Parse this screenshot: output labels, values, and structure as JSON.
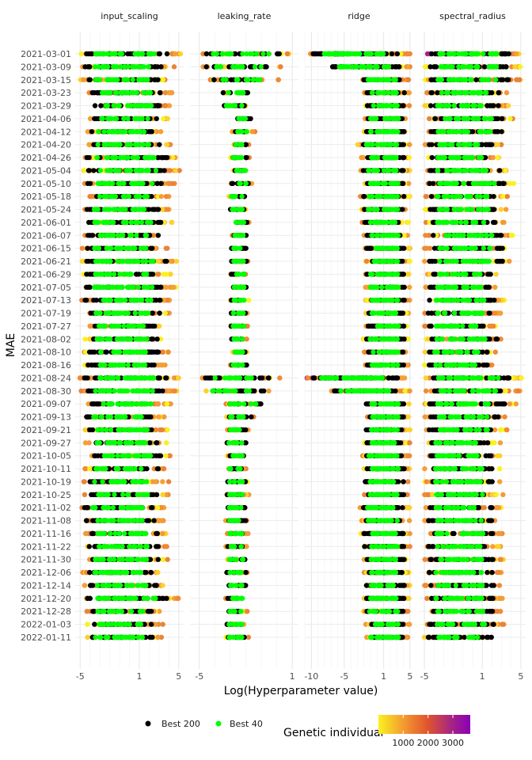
{
  "chart_data": {
    "type": "scatter",
    "ylabel": "MAE",
    "xlabel": "Log(Hyperparameter value)",
    "facets": [
      {
        "name": "input_scaling",
        "xlim": [
          -5.5,
          5.5
        ],
        "ticks": [
          {
            "v": -5,
            "label": "-5"
          },
          {
            "v": 1,
            "label": "1"
          },
          {
            "v": 5,
            "label": "5"
          }
        ]
      },
      {
        "name": "leaking_rate",
        "xlim": [
          -5.6,
          1.4
        ],
        "ticks": [
          {
            "v": -5,
            "label": "-5"
          },
          {
            "v": 1,
            "label": "1"
          }
        ]
      },
      {
        "name": "ridge",
        "xlim": [
          -11,
          5.5
        ],
        "ticks": [
          {
            "v": -10,
            "label": "-10"
          },
          {
            "v": -5,
            "label": "-5"
          },
          {
            "v": 1,
            "label": "1"
          },
          {
            "v": 5,
            "label": "5"
          }
        ]
      },
      {
        "name": "spectral_radius",
        "xlim": [
          -5.5,
          5.5
        ],
        "ticks": [
          {
            "v": -5,
            "label": "-5"
          },
          {
            "v": 1,
            "label": "1"
          },
          {
            "v": 5,
            "label": "5"
          }
        ]
      }
    ],
    "dates": [
      "2021-03-01",
      "2021-03-09",
      "2021-03-15",
      "2021-03-23",
      "2021-03-29",
      "2021-04-06",
      "2021-04-12",
      "2021-04-20",
      "2021-04-26",
      "2021-05-04",
      "2021-05-10",
      "2021-05-18",
      "2021-05-24",
      "2021-06-01",
      "2021-06-07",
      "2021-06-15",
      "2021-06-21",
      "2021-06-29",
      "2021-07-05",
      "2021-07-13",
      "2021-07-19",
      "2021-07-27",
      "2021-08-02",
      "2021-08-10",
      "2021-08-16",
      "2021-08-24",
      "2021-08-30",
      "2021-09-07",
      "2021-09-13",
      "2021-09-21",
      "2021-09-27",
      "2021-10-05",
      "2021-10-11",
      "2021-10-19",
      "2021-10-25",
      "2021-11-02",
      "2021-11-08",
      "2021-11-16",
      "2021-11-22",
      "2021-11-30",
      "2021-12-06",
      "2021-12-14",
      "2021-12-20",
      "2021-12-28",
      "2022-01-03",
      "2022-01-11"
    ],
    "ranges": {
      "input_scaling": [
        [
          -5.0,
          5.2
        ],
        [
          -5.0,
          4.6
        ],
        [
          -5.0,
          4.2
        ],
        [
          -4.2,
          4.4
        ],
        [
          -4.0,
          4.4
        ],
        [
          -4.0,
          4.0
        ],
        [
          -4.3,
          3.6
        ],
        [
          -4.5,
          4.2
        ],
        [
          -4.8,
          5.0
        ],
        [
          -4.8,
          5.2
        ],
        [
          -4.8,
          4.8
        ],
        [
          -4.2,
          4.0
        ],
        [
          -4.8,
          4.0
        ],
        [
          -5.0,
          4.6
        ],
        [
          -4.8,
          4.0
        ],
        [
          -4.8,
          4.0
        ],
        [
          -5.0,
          5.0
        ],
        [
          -5.0,
          4.2
        ],
        [
          -5.0,
          4.8
        ],
        [
          -5.0,
          4.6
        ],
        [
          -4.8,
          4.2
        ],
        [
          -4.4,
          3.5
        ],
        [
          -4.6,
          4.0
        ],
        [
          -4.6,
          4.0
        ],
        [
          -4.6,
          3.8
        ],
        [
          -5.2,
          5.2
        ],
        [
          -5.0,
          5.0
        ],
        [
          -4.4,
          4.4
        ],
        [
          -4.8,
          3.6
        ],
        [
          -4.6,
          4.0
        ],
        [
          -4.6,
          3.8
        ],
        [
          -4.0,
          4.2
        ],
        [
          -4.6,
          4.0
        ],
        [
          -4.8,
          4.0
        ],
        [
          -4.6,
          4.0
        ],
        [
          -5.0,
          3.8
        ],
        [
          -4.8,
          3.8
        ],
        [
          -4.6,
          4.0
        ],
        [
          -4.6,
          4.0
        ],
        [
          -4.8,
          4.0
        ],
        [
          -4.8,
          3.4
        ],
        [
          -4.6,
          3.8
        ],
        [
          -4.8,
          5.2
        ],
        [
          -4.4,
          3.4
        ],
        [
          -4.4,
          3.4
        ],
        [
          -4.6,
          3.4
        ]
      ],
      "leaking_rate": [
        [
          -5.0,
          1.0
        ],
        [
          -5.0,
          0.4
        ],
        [
          -4.3,
          0.2
        ],
        [
          -3.7,
          -1.6
        ],
        [
          -3.5,
          -1.8
        ],
        [
          -2.7,
          -1.5
        ],
        [
          -3.0,
          -1.4
        ],
        [
          -2.8,
          -1.8
        ],
        [
          -3.0,
          -1.7
        ],
        [
          -2.8,
          -1.7
        ],
        [
          -3.0,
          -1.6
        ],
        [
          -3.1,
          -1.9
        ],
        [
          -3.1,
          -1.9
        ],
        [
          -2.8,
          -1.7
        ],
        [
          -2.9,
          -1.8
        ],
        [
          -3.0,
          -1.8
        ],
        [
          -3.0,
          -1.8
        ],
        [
          -3.0,
          -1.8
        ],
        [
          -3.0,
          -1.8
        ],
        [
          -3.0,
          -1.8
        ],
        [
          -3.0,
          -1.8
        ],
        [
          -3.0,
          -1.8
        ],
        [
          -3.0,
          -1.8
        ],
        [
          -3.0,
          -1.8
        ],
        [
          -3.0,
          -1.8
        ],
        [
          -5.0,
          0.2
        ],
        [
          -5.0,
          -0.2
        ],
        [
          -3.5,
          -0.6
        ],
        [
          -3.3,
          -1.4
        ],
        [
          -3.3,
          -1.8
        ],
        [
          -3.3,
          -1.8
        ],
        [
          -3.3,
          -1.8
        ],
        [
          -3.3,
          -1.8
        ],
        [
          -3.3,
          -1.8
        ],
        [
          -3.3,
          -1.8
        ],
        [
          -3.3,
          -1.8
        ],
        [
          -3.3,
          -1.8
        ],
        [
          -3.3,
          -1.8
        ],
        [
          -3.3,
          -1.8
        ],
        [
          -3.3,
          -1.8
        ],
        [
          -3.3,
          -1.8
        ],
        [
          -3.3,
          -1.8
        ],
        [
          -3.3,
          -1.8
        ],
        [
          -3.3,
          -1.8
        ],
        [
          -3.3,
          -1.8
        ],
        [
          -3.3,
          -1.8
        ]
      ],
      "ridge": [
        [
          -10.5,
          5.0
        ],
        [
          -7.5,
          5.0
        ],
        [
          -2.5,
          5.0
        ],
        [
          -2.0,
          5.0
        ],
        [
          -2.0,
          5.0
        ],
        [
          -2.0,
          5.0
        ],
        [
          -2.0,
          5.0
        ],
        [
          -3.0,
          5.0
        ],
        [
          -2.5,
          5.0
        ],
        [
          -2.5,
          5.0
        ],
        [
          -2.0,
          5.0
        ],
        [
          -2.6,
          5.0
        ],
        [
          -2.4,
          5.0
        ],
        [
          -2.4,
          5.0
        ],
        [
          -2.0,
          5.0
        ],
        [
          -2.0,
          5.0
        ],
        [
          -2.0,
          5.0
        ],
        [
          -2.0,
          5.0
        ],
        [
          -2.0,
          5.0
        ],
        [
          -1.8,
          5.0
        ],
        [
          -2.0,
          5.0
        ],
        [
          -2.0,
          5.0
        ],
        [
          -2.2,
          5.0
        ],
        [
          -2.0,
          5.0
        ],
        [
          -2.0,
          5.0
        ],
        [
          -10.7,
          5.0
        ],
        [
          -7.3,
          5.0
        ],
        [
          -2.0,
          5.0
        ],
        [
          -2.0,
          5.0
        ],
        [
          -2.0,
          5.0
        ],
        [
          -2.0,
          5.0
        ],
        [
          -2.3,
          5.0
        ],
        [
          -2.0,
          5.0
        ],
        [
          -2.2,
          5.0
        ],
        [
          -2.2,
          5.0
        ],
        [
          -2.6,
          5.0
        ],
        [
          -2.6,
          5.0
        ],
        [
          -2.5,
          5.0
        ],
        [
          -2.3,
          5.0
        ],
        [
          -2.0,
          5.0
        ],
        [
          -2.0,
          5.0
        ],
        [
          -2.0,
          5.0
        ],
        [
          -2.2,
          5.0
        ],
        [
          -2.2,
          5.0
        ],
        [
          -2.0,
          5.0
        ],
        [
          -2.0,
          5.0
        ]
      ],
      "spectral_radius": [
        [
          -5.0,
          5.2
        ],
        [
          -5.0,
          5.0
        ],
        [
          -5.0,
          5.0
        ],
        [
          -5.0,
          3.8
        ],
        [
          -5.0,
          3.8
        ],
        [
          -4.5,
          4.2
        ],
        [
          -5.0,
          4.2
        ],
        [
          -5.0,
          3.0
        ],
        [
          -5.0,
          3.0
        ],
        [
          -5.0,
          4.0
        ],
        [
          -5.0,
          4.8
        ],
        [
          -5.0,
          3.8
        ],
        [
          -5.0,
          4.0
        ],
        [
          -5.0,
          3.4
        ],
        [
          -5.0,
          4.4
        ],
        [
          -5.0,
          4.2
        ],
        [
          -5.0,
          4.2
        ],
        [
          -5.0,
          2.8
        ],
        [
          -5.0,
          3.0
        ],
        [
          -5.0,
          3.4
        ],
        [
          -5.0,
          3.0
        ],
        [
          -5.0,
          2.4
        ],
        [
          -5.0,
          3.6
        ],
        [
          -5.0,
          2.4
        ],
        [
          -5.0,
          2.4
        ],
        [
          -5.0,
          5.2
        ],
        [
          -5.0,
          5.0
        ],
        [
          -5.0,
          4.6
        ],
        [
          -5.0,
          3.8
        ],
        [
          -5.0,
          3.8
        ],
        [
          -5.0,
          3.0
        ],
        [
          -5.0,
          3.0
        ],
        [
          -5.0,
          3.0
        ],
        [
          -5.0,
          3.0
        ],
        [
          -5.0,
          3.2
        ],
        [
          -5.0,
          3.0
        ],
        [
          -5.0,
          3.0
        ],
        [
          -5.0,
          3.2
        ],
        [
          -5.0,
          3.2
        ],
        [
          -5.0,
          3.2
        ],
        [
          -5.0,
          3.2
        ],
        [
          -5.0,
          3.2
        ],
        [
          -5.0,
          3.2
        ],
        [
          -5.0,
          3.2
        ],
        [
          -5.0,
          3.4
        ],
        [
          -5.0,
          3.0
        ]
      ]
    },
    "legend_points": {
      "items": [
        {
          "label": "Best 200",
          "color": "#000000"
        },
        {
          "label": "Best 40",
          "color": "#00ff00"
        }
      ]
    },
    "legend_color": {
      "title": "Genetic individual",
      "ticks": [
        {
          "v": 1000,
          "label": "1000"
        },
        {
          "v": 2000,
          "label": "2000"
        },
        {
          "v": 3000,
          "label": "3000"
        }
      ],
      "range": [
        0,
        3700
      ],
      "colors": [
        "#f8f220",
        "#f59b30",
        "#e0532e",
        "#a42386",
        "#8a00b6"
      ]
    }
  }
}
